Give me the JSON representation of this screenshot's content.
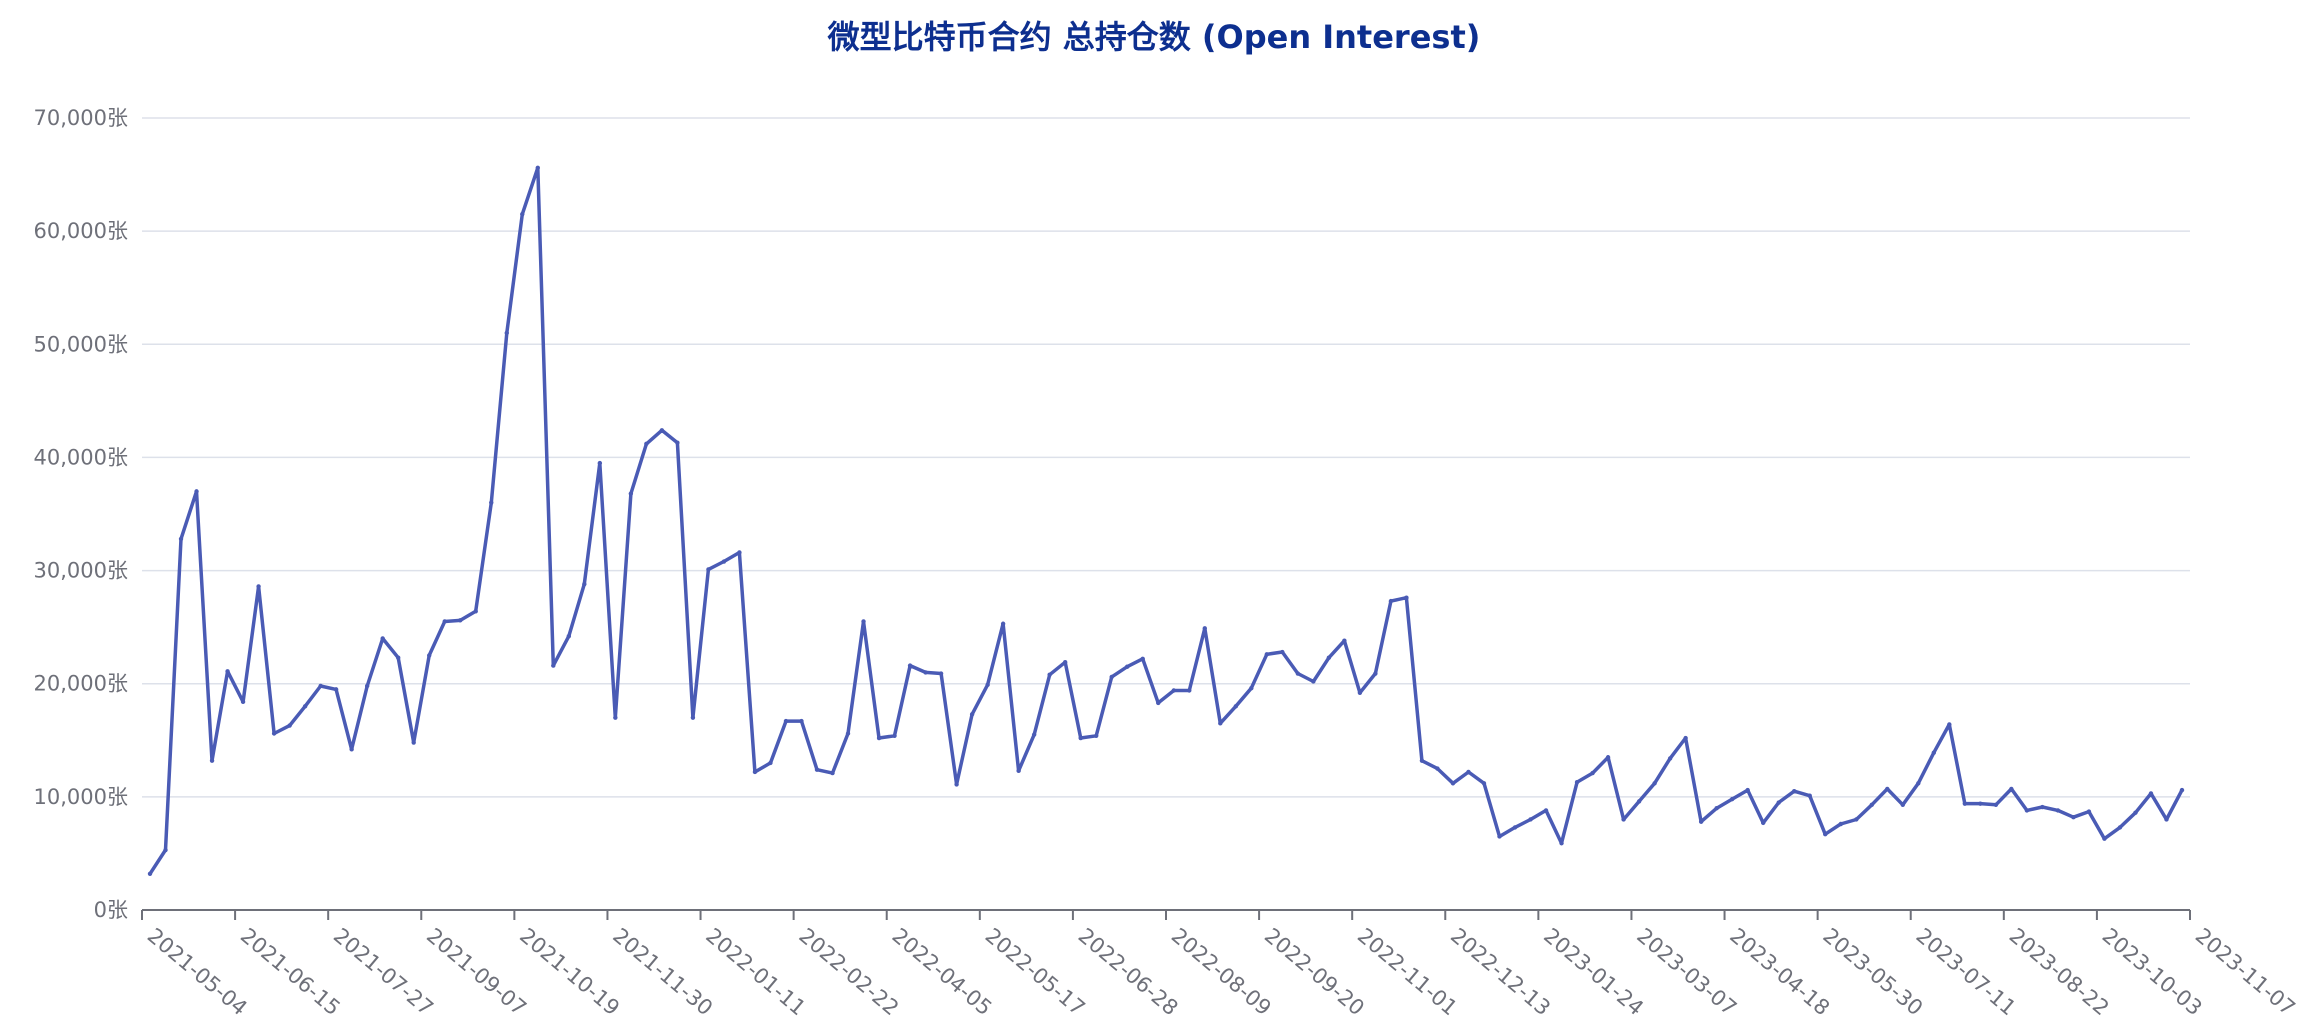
{
  "chart_data": {
    "type": "line",
    "title": "微型比特币合约 总持仓数 (Open Interest)",
    "xlabel": "",
    "ylabel": "",
    "ylim": [
      0,
      70000
    ],
    "yticks": [
      "0张",
      "10,000张",
      "20,000张",
      "30,000张",
      "40,000张",
      "50,000张",
      "60,000张",
      "70,000张"
    ],
    "ytick_values": [
      0,
      10000,
      20000,
      30000,
      40000,
      50000,
      60000,
      70000
    ],
    "xticks": [
      "2021-05-04",
      "2021-06-15",
      "2021-07-27",
      "2021-09-07",
      "2021-10-19",
      "2021-11-30",
      "2022-01-11",
      "2022-02-22",
      "2022-04-05",
      "2022-05-17",
      "2022-06-28",
      "2022-08-09",
      "2022-09-20",
      "2022-11-01",
      "2022-12-13",
      "2023-01-24",
      "2023-03-07",
      "2023-04-18",
      "2023-05-30",
      "2023-07-11",
      "2023-08-22",
      "2023-10-03",
      "2023-11-07"
    ],
    "grid": true,
    "legend": "none",
    "colors": {
      "line": "#4a5bb5",
      "title": "#0d2f8f",
      "grid": "#dde1ea",
      "axis": "#6e7079"
    },
    "series": [
      {
        "values": [
          3200,
          5300,
          32800,
          37000,
          13200,
          21100,
          18400,
          28600,
          15600,
          16300,
          18000,
          19800,
          19500,
          14200,
          19800,
          24000,
          22300,
          14800,
          22500,
          25500,
          25600,
          26400,
          36000,
          51000,
          61500,
          65600,
          21600,
          24200,
          28800,
          39500,
          17000,
          36800,
          41200,
          42400,
          41300,
          17000,
          30100,
          30800,
          31600,
          12200,
          13000,
          16700,
          16700,
          12400,
          12100,
          15600,
          25500,
          15200,
          15400,
          21600,
          21000,
          20900,
          11100,
          17300,
          19900,
          25300,
          12300,
          15500,
          20800,
          21900,
          15200,
          15400,
          20600,
          21500,
          22200,
          18300,
          19400,
          19400,
          24900,
          16500,
          18000,
          19600,
          22600,
          22800,
          20900,
          20200,
          22300,
          23800,
          19200,
          20900,
          27300,
          27600,
          13200,
          12500,
          11200,
          12200,
          11200,
          6500,
          7300,
          8000,
          8800,
          5900,
          11300,
          12100,
          13500,
          8000,
          9600,
          11200,
          13400,
          15200,
          7800,
          9000,
          9800,
          10600,
          7700,
          9500,
          10500,
          10100,
          6700,
          7600,
          8000,
          9300,
          10700,
          9300,
          11200,
          13900,
          16400,
          9400,
          9400,
          9300,
          10700,
          8800,
          9100,
          8800,
          8200,
          8700,
          6300,
          7300,
          8600,
          10300,
          8000,
          10600
        ]
      }
    ]
  }
}
